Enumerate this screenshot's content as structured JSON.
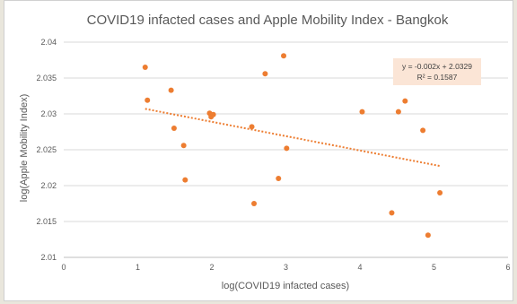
{
  "chart_data": {
    "type": "scatter",
    "title": "COVID19 infacted cases and Apple Mobility Index - Bangkok",
    "xlabel": "log(COVID19 infacted cases)",
    "ylabel": "log(Apple Mobility Index)",
    "xlim": [
      0,
      6
    ],
    "ylim": [
      2.01,
      2.04
    ],
    "x_ticks": [
      "0",
      "1",
      "2",
      "3",
      "4",
      "5",
      "6"
    ],
    "y_ticks": [
      "2.01",
      "2.015",
      "2.02",
      "2.025",
      "2.03",
      "2.035",
      "2.04"
    ],
    "grid": "horizontal",
    "series": [
      {
        "color": "#ed7d31",
        "points": [
          {
            "x": 1.1,
            "y": 2.0365
          },
          {
            "x": 1.13,
            "y": 2.0319
          },
          {
            "x": 1.45,
            "y": 2.0333
          },
          {
            "x": 1.49,
            "y": 2.028
          },
          {
            "x": 1.62,
            "y": 2.0256
          },
          {
            "x": 1.64,
            "y": 2.0208
          },
          {
            "x": 1.97,
            "y": 2.0301
          },
          {
            "x": 1.99,
            "y": 2.0296
          },
          {
            "x": 2.02,
            "y": 2.0299
          },
          {
            "x": 2.54,
            "y": 2.0282
          },
          {
            "x": 2.57,
            "y": 2.0175
          },
          {
            "x": 2.72,
            "y": 2.0356
          },
          {
            "x": 2.9,
            "y": 2.021
          },
          {
            "x": 2.97,
            "y": 2.0381
          },
          {
            "x": 3.01,
            "y": 2.0252
          },
          {
            "x": 4.03,
            "y": 2.0303
          },
          {
            "x": 4.43,
            "y": 2.0162
          },
          {
            "x": 4.52,
            "y": 2.0303
          },
          {
            "x": 4.61,
            "y": 2.0318
          },
          {
            "x": 4.85,
            "y": 2.0277
          },
          {
            "x": 4.92,
            "y": 2.0131
          },
          {
            "x": 5.08,
            "y": 2.019
          }
        ]
      }
    ],
    "trendline": {
      "style": "dotted",
      "color": "#ed7d31",
      "slope": -0.002,
      "intercept": 2.0329,
      "x_range": [
        1.1,
        5.08
      ],
      "equation": "y = -0.002x + 2.0329",
      "r_squared": "R² = 0.1587",
      "box_color": "#fbe5d6"
    }
  }
}
